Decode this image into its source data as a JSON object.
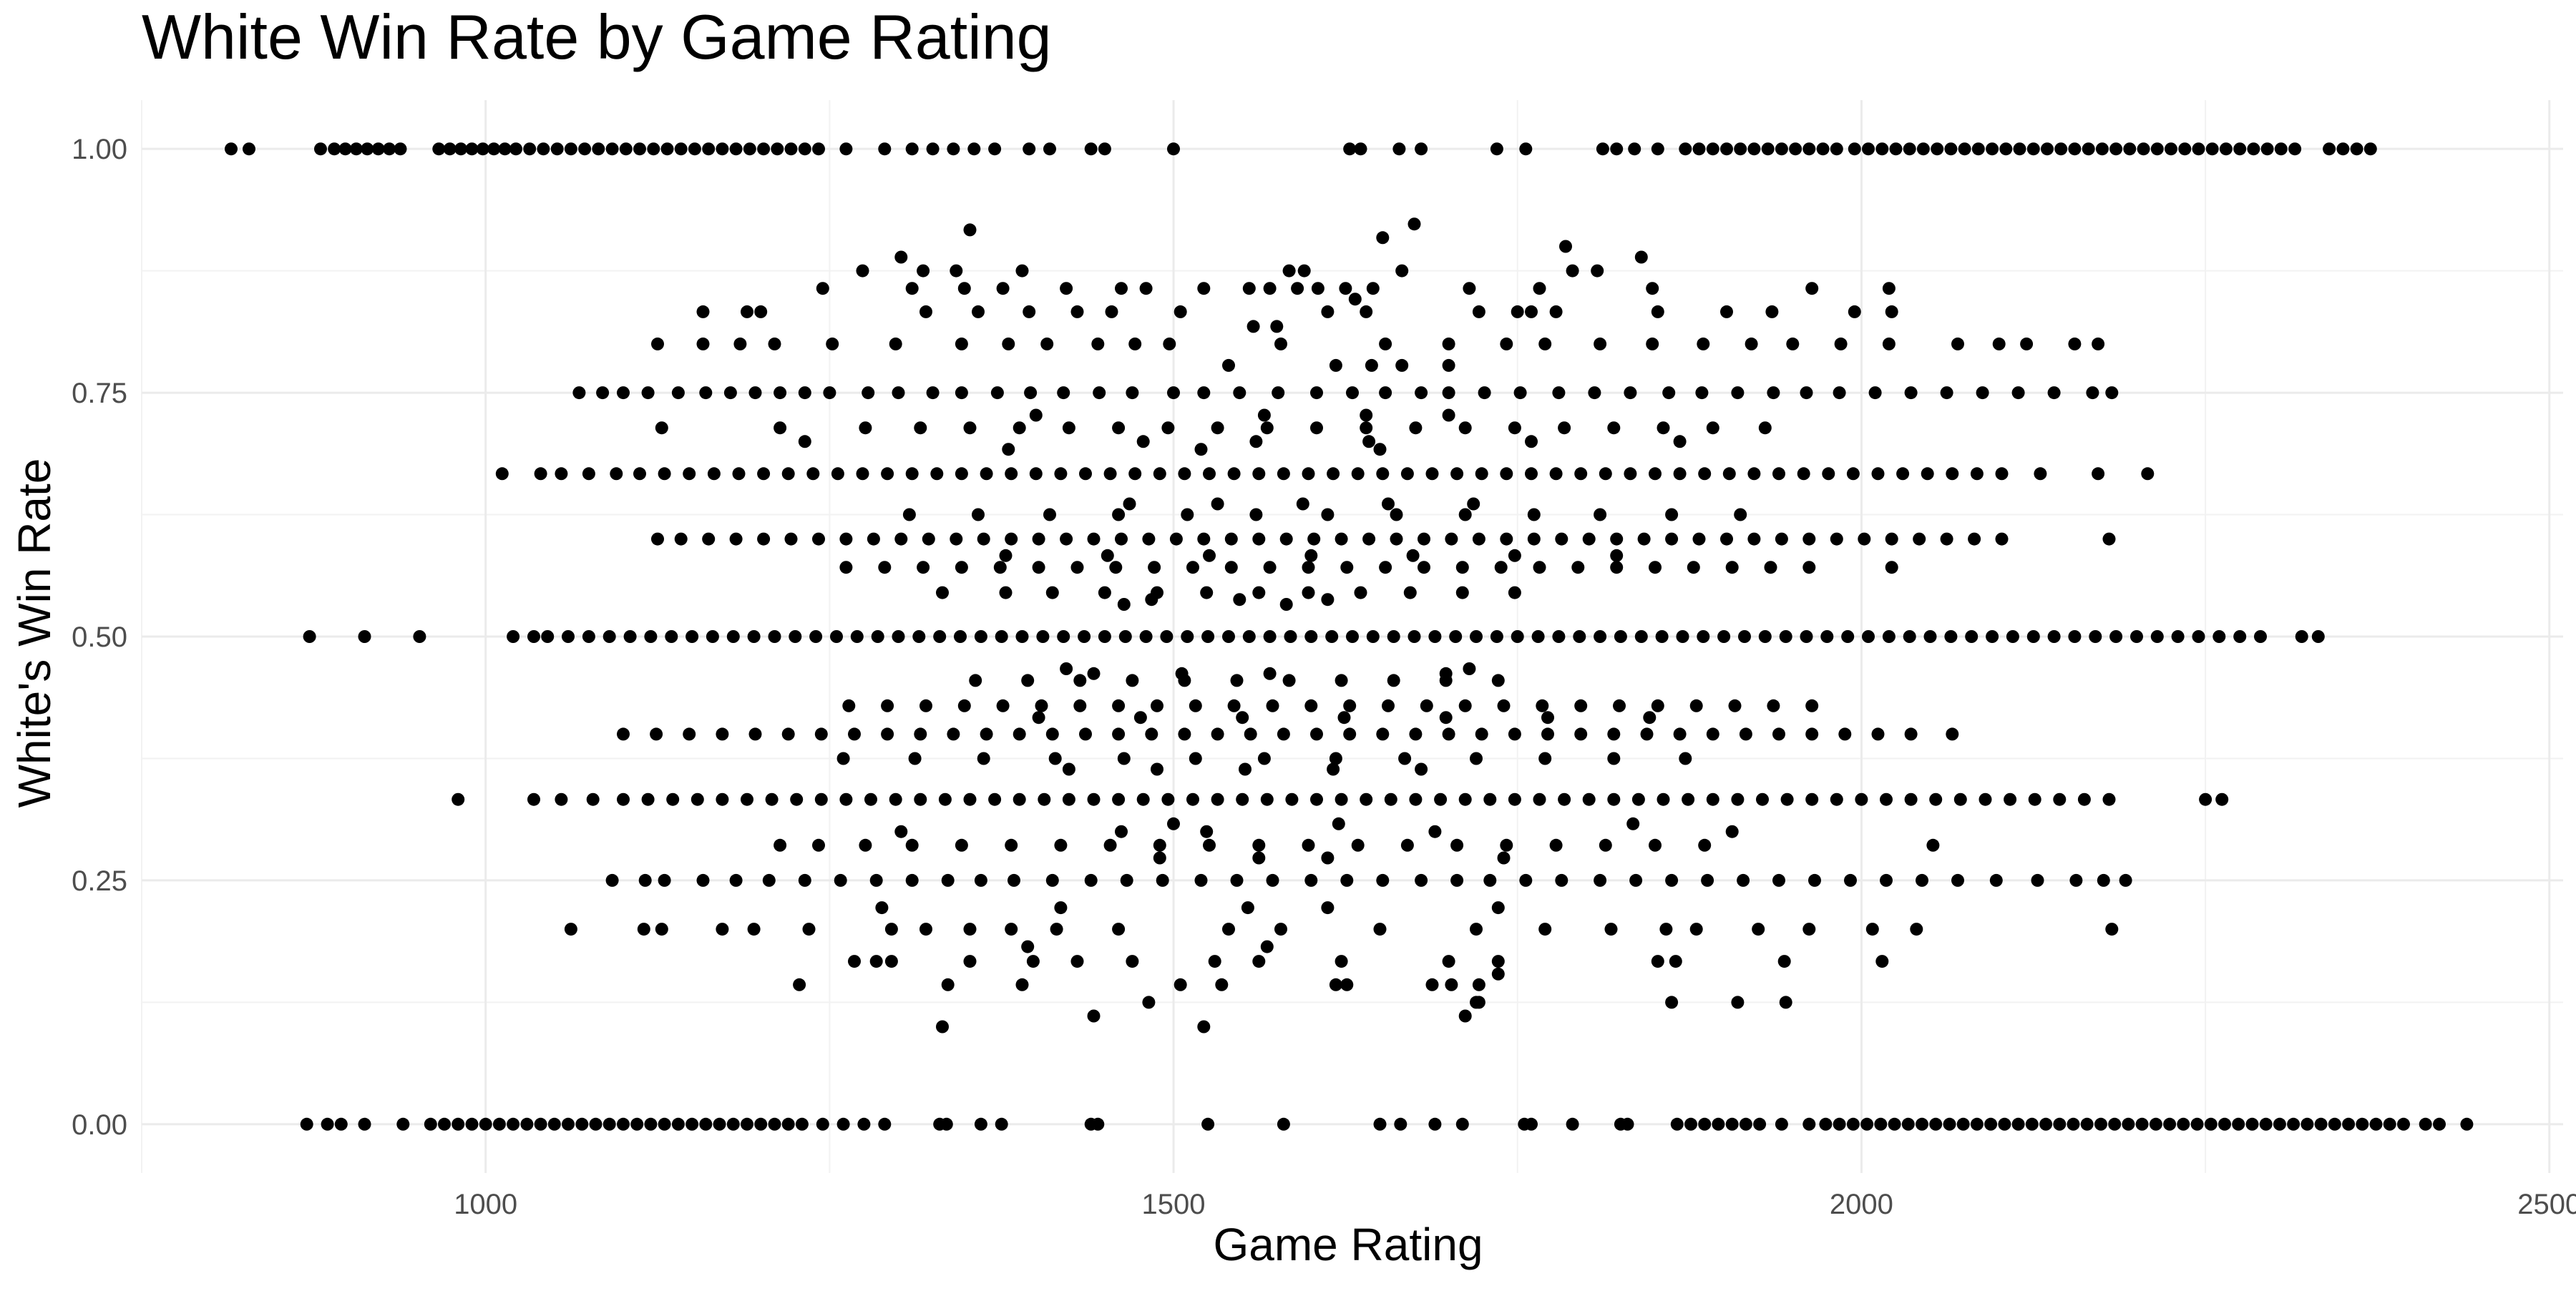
{
  "chart_data": {
    "type": "scatter",
    "title": "White Win Rate by Game Rating",
    "xlabel": "Game Rating",
    "ylabel": "White's Win Rate",
    "xlim": [
      750,
      2510
    ],
    "ylim": [
      -0.05,
      1.05
    ],
    "x_ticks": [
      1000,
      1500,
      2000,
      2500
    ],
    "x_tick_labels": [
      "1000",
      "1500",
      "2000",
      "2500"
    ],
    "y_ticks": [
      0,
      0.25,
      0.5,
      0.75,
      1
    ],
    "y_tick_labels": [
      "0.00",
      "0.25",
      "0.50",
      "0.75",
      "1.00"
    ],
    "x_minor_ticks": [
      750,
      1250,
      1750,
      2250
    ],
    "y_minor_ticks": [
      0.125,
      0.375,
      0.625,
      0.875
    ],
    "grid": true,
    "legend": "none",
    "point_color": "#000000",
    "point_groups": [
      {
        "y": 1.0,
        "x": [
          815,
          828,
          880,
          890,
          898,
          906,
          914,
          922,
          930,
          938,
          966,
          974,
          982,
          990,
          998,
          1006,
          1014,
          1022,
          1032,
          1042,
          1052,
          1062,
          1072,
          1082,
          1092,
          1102,
          1112,
          1122,
          1132,
          1142,
          1152,
          1162,
          1172,
          1182,
          1192,
          1202,
          1212,
          1222,
          1232,
          1242,
          1262,
          1290,
          1310,
          1325,
          1340,
          1355,
          1370,
          1395,
          1410,
          1440,
          1450,
          1500,
          1628,
          1636,
          1664,
          1680,
          1735,
          1756,
          1812,
          1822,
          1835,
          1852,
          1872,
          1882,
          1892,
          1902,
          1912,
          1922,
          1932,
          1942,
          1952,
          1962,
          1972,
          1982,
          1995,
          2005,
          2015,
          2025,
          2035,
          2045,
          2055,
          2065,
          2075,
          2085,
          2095,
          2105,
          2115,
          2125,
          2135,
          2145,
          2155,
          2165,
          2175,
          2185,
          2195,
          2205,
          2215,
          2225,
          2235,
          2245,
          2255,
          2265,
          2275,
          2285,
          2295,
          2305,
          2315,
          2340,
          2350,
          2360,
          2370
        ]
      },
      {
        "y": 0.0,
        "x": [
          870,
          885,
          895,
          912,
          940,
          960,
          970,
          980,
          990,
          1000,
          1010,
          1020,
          1030,
          1040,
          1050,
          1060,
          1070,
          1080,
          1090,
          1100,
          1110,
          1120,
          1130,
          1140,
          1150,
          1160,
          1170,
          1180,
          1190,
          1200,
          1210,
          1220,
          1230,
          1245,
          1260,
          1275,
          1290,
          1330,
          1335,
          1360,
          1375,
          1440,
          1445,
          1525,
          1580,
          1650,
          1665,
          1690,
          1710,
          1755,
          1760,
          1790,
          1825,
          1830,
          1866,
          1876,
          1886,
          1896,
          1906,
          1916,
          1926,
          1942,
          1962,
          1974,
          1984,
          1994,
          2004,
          2014,
          2024,
          2034,
          2044,
          2054,
          2064,
          2074,
          2084,
          2094,
          2104,
          2114,
          2124,
          2134,
          2144,
          2154,
          2164,
          2174,
          2184,
          2194,
          2204,
          2214,
          2224,
          2234,
          2244,
          2254,
          2264,
          2274,
          2284,
          2294,
          2304,
          2314,
          2324,
          2334,
          2344,
          2354,
          2364,
          2374,
          2384,
          2394,
          2410,
          2420,
          2440
        ]
      },
      {
        "y": 0.5,
        "x": [
          872,
          912,
          952,
          1020,
          1035,
          1045,
          1060,
          1075,
          1090,
          1105,
          1120,
          1135,
          1150,
          1165,
          1180,
          1195,
          1210,
          1225,
          1240,
          1255,
          1270,
          1285,
          1300,
          1315,
          1330,
          1345,
          1360,
          1375,
          1390,
          1405,
          1420,
          1435,
          1450,
          1465,
          1480,
          1495,
          1510,
          1525,
          1540,
          1555,
          1570,
          1585,
          1600,
          1615,
          1630,
          1645,
          1660,
          1675,
          1690,
          1705,
          1720,
          1735,
          1750,
          1765,
          1780,
          1795,
          1810,
          1825,
          1840,
          1855,
          1870,
          1885,
          1900,
          1915,
          1930,
          1945,
          1960,
          1975,
          1990,
          2005,
          2020,
          2035,
          2050,
          2065,
          2080,
          2095,
          2110,
          2125,
          2140,
          2155,
          2170,
          2185,
          2200,
          2215,
          2230,
          2245,
          2260,
          2275,
          2290,
          2320,
          2332
        ]
      },
      {
        "y": 0.667,
        "x": [
          1012,
          1040,
          1055,
          1075,
          1095,
          1112,
          1130,
          1148,
          1166,
          1184,
          1202,
          1220,
          1238,
          1256,
          1274,
          1292,
          1310,
          1328,
          1346,
          1364,
          1382,
          1400,
          1418,
          1436,
          1454,
          1472,
          1490,
          1508,
          1526,
          1544,
          1562,
          1580,
          1598,
          1616,
          1634,
          1652,
          1670,
          1688,
          1706,
          1724,
          1742,
          1760,
          1778,
          1796,
          1814,
          1832,
          1850,
          1868,
          1886,
          1904,
          1922,
          1940,
          1958,
          1976,
          1994,
          2012,
          2030,
          2048,
          2066,
          2084,
          2102,
          2130,
          2172,
          2208
        ]
      },
      {
        "y": 0.333,
        "x": [
          980,
          1035,
          1055,
          1078,
          1100,
          1118,
          1136,
          1154,
          1172,
          1190,
          1208,
          1226,
          1244,
          1262,
          1280,
          1298,
          1316,
          1334,
          1352,
          1370,
          1388,
          1406,
          1424,
          1442,
          1460,
          1478,
          1496,
          1514,
          1532,
          1550,
          1568,
          1586,
          1604,
          1622,
          1640,
          1658,
          1676,
          1694,
          1712,
          1730,
          1748,
          1766,
          1784,
          1802,
          1820,
          1838,
          1856,
          1874,
          1892,
          1910,
          1928,
          1946,
          1964,
          1982,
          2000,
          2018,
          2036,
          2054,
          2072,
          2090,
          2108,
          2126,
          2144,
          2162,
          2180,
          2250,
          2262
        ]
      },
      {
        "y": 0.75,
        "x": [
          1068,
          1085,
          1100,
          1118,
          1140,
          1160,
          1178,
          1196,
          1214,
          1232,
          1250,
          1278,
          1300,
          1325,
          1346,
          1372,
          1396,
          1420,
          1446,
          1470,
          1500,
          1522,
          1548,
          1576,
          1604,
          1630,
          1654,
          1680,
          1700,
          1726,
          1752,
          1780,
          1806,
          1832,
          1860,
          1884,
          1910,
          1936,
          1960,
          1984,
          2010,
          2036,
          2062,
          2088,
          2114,
          2140,
          2168,
          2182
        ]
      },
      {
        "y": 0.25,
        "x": [
          1092,
          1116,
          1130,
          1158,
          1182,
          1206,
          1232,
          1258,
          1284,
          1310,
          1336,
          1360,
          1384,
          1412,
          1440,
          1466,
          1492,
          1520,
          1546,
          1572,
          1600,
          1626,
          1652,
          1680,
          1706,
          1730,
          1756,
          1782,
          1810,
          1836,
          1862,
          1888,
          1914,
          1940,
          1966,
          1992,
          2018,
          2044,
          2070,
          2098,
          2128,
          2156,
          2176,
          2192
        ]
      },
      {
        "y": 0.6,
        "x": [
          1125,
          1142,
          1162,
          1182,
          1202,
          1222,
          1242,
          1262,
          1282,
          1302,
          1322,
          1342,
          1362,
          1382,
          1402,
          1422,
          1442,
          1462,
          1482,
          1502,
          1522,
          1542,
          1562,
          1582,
          1602,
          1622,
          1642,
          1662,
          1682,
          1702,
          1722,
          1742,
          1762,
          1782,
          1802,
          1822,
          1842,
          1862,
          1882,
          1902,
          1922,
          1942,
          1962,
          1982,
          2002,
          2022,
          2042,
          2062,
          2082,
          2102,
          2180
        ]
      },
      {
        "y": 0.4,
        "x": [
          1100,
          1124,
          1148,
          1172,
          1196,
          1220,
          1244,
          1268,
          1292,
          1316,
          1340,
          1364,
          1388,
          1412,
          1436,
          1460,
          1484,
          1508,
          1532,
          1556,
          1580,
          1604,
          1628,
          1652,
          1676,
          1700,
          1724,
          1748,
          1772,
          1796,
          1820,
          1844,
          1868,
          1892,
          1916,
          1940,
          1964,
          1988,
          2012,
          2036,
          2066
        ]
      },
      {
        "y": 0.8,
        "x": [
          1125,
          1158,
          1185,
          1210,
          1252,
          1298,
          1346,
          1380,
          1408,
          1445,
          1472,
          1497,
          1578,
          1654,
          1700,
          1742,
          1770,
          1810,
          1848,
          1885,
          1920,
          1950,
          1985,
          2020,
          2070,
          2100,
          2120,
          2155,
          2172
        ]
      },
      {
        "y": 0.2,
        "x": [
          1062,
          1115,
          1128,
          1172,
          1195,
          1235,
          1295,
          1320,
          1352,
          1382,
          1415,
          1460,
          1540,
          1578,
          1650,
          1720,
          1770,
          1818,
          1858,
          1880,
          1925,
          1962,
          2008,
          2040,
          2182
        ]
      },
      {
        "y": 0.571,
        "x": [
          1262,
          1290,
          1318,
          1346,
          1374,
          1402,
          1430,
          1458,
          1486,
          1514,
          1542,
          1570,
          1598,
          1626,
          1654,
          1682,
          1710,
          1738,
          1766,
          1794,
          1822,
          1850,
          1878,
          1906,
          1934,
          1962,
          2022
        ]
      },
      {
        "y": 0.429,
        "x": [
          1264,
          1292,
          1320,
          1348,
          1376,
          1404,
          1432,
          1460,
          1488,
          1516,
          1544,
          1572,
          1600,
          1628,
          1656,
          1684,
          1712,
          1740,
          1768,
          1796,
          1824,
          1852,
          1880,
          1908,
          1936,
          1964
        ]
      },
      {
        "y": 0.714,
        "x": [
          1128,
          1214,
          1276,
          1316,
          1352,
          1388,
          1424,
          1460,
          1496,
          1532,
          1568,
          1604,
          1640,
          1676,
          1712,
          1748,
          1784,
          1820,
          1856,
          1892,
          1930
        ]
      },
      {
        "y": 0.286,
        "x": [
          1214,
          1242,
          1276,
          1310,
          1346,
          1382,
          1418,
          1454,
          1490,
          1526,
          1562,
          1598,
          1634,
          1670,
          1706,
          1742,
          1778,
          1814,
          1850,
          1886,
          2052
        ]
      },
      {
        "y": 0.833,
        "x": [
          1158,
          1190,
          1200,
          1320,
          1358,
          1395,
          1430,
          1455,
          1505,
          1612,
          1640,
          1722,
          1750,
          1760,
          1778,
          1852,
          1902,
          1935,
          1995,
          2022
        ]
      },
      {
        "y": 0.167,
        "x": [
          1268,
          1284,
          1295,
          1352,
          1398,
          1430,
          1470,
          1530,
          1562,
          1622,
          1700,
          1736,
          1852,
          1865,
          1944,
          2015
        ]
      },
      {
        "y": 0.857,
        "x": [
          1245,
          1310,
          1348,
          1376,
          1422,
          1462,
          1480,
          1522,
          1555,
          1570,
          1590,
          1605,
          1625,
          1645,
          1715,
          1766,
          1848,
          1964,
          2020
        ]
      },
      {
        "y": 0.143,
        "x": [
          1228,
          1336,
          1390,
          1505,
          1535,
          1618,
          1626,
          1688,
          1702,
          1722
        ]
      },
      {
        "y": 0.875,
        "x": [
          1274,
          1318,
          1342,
          1390,
          1584,
          1595,
          1666,
          1790,
          1808
        ]
      },
      {
        "y": 0.125,
        "x": [
          1482,
          1720,
          1722,
          1862,
          1910,
          1945
        ]
      },
      {
        "y": 0.111,
        "x": [
          1442,
          1712
        ]
      },
      {
        "y": 0.1,
        "x": [
          1332,
          1522
        ]
      },
      {
        "y": 0.889,
        "x": [
          1302,
          1840
        ]
      },
      {
        "y": 0.9,
        "x": [
          1785
        ]
      },
      {
        "y": 0.909,
        "x": [
          1652
        ]
      },
      {
        "y": 0.917,
        "x": [
          1352
        ]
      },
      {
        "y": 0.923,
        "x": [
          1675
        ]
      },
      {
        "y": 0.545,
        "x": [
          1332,
          1378,
          1412,
          1450,
          1488,
          1524,
          1562,
          1598,
          1636,
          1672,
          1710,
          1748
        ]
      },
      {
        "y": 0.455,
        "x": [
          1356,
          1394,
          1432,
          1470,
          1508,
          1546,
          1584,
          1622,
          1660,
          1698,
          1736
        ]
      },
      {
        "y": 0.625,
        "x": [
          1308,
          1358,
          1410,
          1460,
          1510,
          1560,
          1612,
          1662,
          1712,
          1762,
          1810,
          1862,
          1912
        ]
      },
      {
        "y": 0.375,
        "x": [
          1260,
          1312,
          1362,
          1414,
          1464,
          1516,
          1566,
          1618,
          1668,
          1720,
          1770,
          1820,
          1872
        ]
      },
      {
        "y": 0.636,
        "x": [
          1468,
          1532,
          1594,
          1656,
          1718
        ]
      },
      {
        "y": 0.364,
        "x": [
          1424,
          1488,
          1552,
          1616,
          1680
        ]
      },
      {
        "y": 0.538,
        "x": [
          1484,
          1548,
          1612
        ]
      },
      {
        "y": 0.462,
        "x": [
          1442,
          1506,
          1570,
          1698
        ]
      },
      {
        "y": 0.467,
        "x": [
          1422,
          1715
        ]
      },
      {
        "y": 0.533,
        "x": [
          1464,
          1582
        ]
      },
      {
        "y": 0.778,
        "x": [
          1540,
          1618,
          1644,
          1666,
          1700
        ]
      },
      {
        "y": 0.222,
        "x": [
          1288,
          1418,
          1554,
          1612,
          1736
        ]
      },
      {
        "y": 0.7,
        "x": [
          1232,
          1478,
          1560,
          1642,
          1760,
          1868
        ]
      },
      {
        "y": 0.3,
        "x": [
          1302,
          1462,
          1524,
          1690,
          1906
        ]
      },
      {
        "y": 0.727,
        "x": [
          1400,
          1566,
          1640,
          1700
        ]
      },
      {
        "y": 0.273,
        "x": [
          1490,
          1562,
          1612,
          1740
        ]
      },
      {
        "y": 0.583,
        "x": [
          1378,
          1452,
          1526,
          1600,
          1674,
          1748,
          1822
        ]
      },
      {
        "y": 0.417,
        "x": [
          1402,
          1476,
          1550,
          1624,
          1698,
          1772,
          1846
        ]
      },
      {
        "y": 0.692,
        "x": [
          1380,
          1520,
          1650
        ]
      },
      {
        "y": 0.308,
        "x": [
          1500,
          1620,
          1834
        ]
      },
      {
        "y": 0.818,
        "x": [
          1558,
          1575
        ]
      },
      {
        "y": 0.182,
        "x": [
          1394,
          1568
        ]
      },
      {
        "y": 0.154,
        "x": [
          1736
        ]
      },
      {
        "y": 0.846,
        "x": [
          1632
        ]
      }
    ]
  }
}
